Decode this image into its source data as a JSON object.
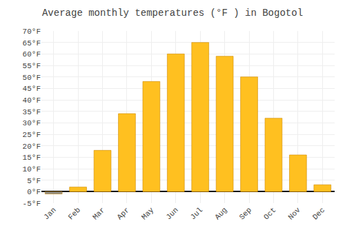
{
  "chart_data": {
    "type": "bar",
    "title": "Average monthly temperatures (°F ) in Bogotol",
    "categories": [
      "Jan",
      "Feb",
      "Mar",
      "Apr",
      "May",
      "Jun",
      "Jul",
      "Aug",
      "Sep",
      "Oct",
      "Nov",
      "Dec"
    ],
    "values": [
      -1,
      2,
      18,
      34,
      48,
      60,
      65,
      59,
      50,
      32,
      16,
      3
    ],
    "colors": [
      "#888888",
      "#FFC020",
      "#FFC020",
      "#FFC020",
      "#FFC020",
      "#FFC020",
      "#FFC020",
      "#FFC020",
      "#FFC020",
      "#FFC020",
      "#FFC020",
      "#FFC020"
    ],
    "ylim": [
      -5,
      70
    ],
    "yticks": [
      {
        "value": -5,
        "label": "-5°F"
      },
      {
        "value": 0,
        "label": "0°F"
      },
      {
        "value": 5,
        "label": "5°F"
      },
      {
        "value": 10,
        "label": "10°F"
      },
      {
        "value": 15,
        "label": "15°F"
      },
      {
        "value": 20,
        "label": "20°F"
      },
      {
        "value": 25,
        "label": "25°F"
      },
      {
        "value": 30,
        "label": "30°F"
      },
      {
        "value": 35,
        "label": "35°F"
      },
      {
        "value": 40,
        "label": "40°F"
      },
      {
        "value": 45,
        "label": "45°F"
      },
      {
        "value": 50,
        "label": "50°F"
      },
      {
        "value": 55,
        "label": "55°F"
      },
      {
        "value": 60,
        "label": "60°F"
      },
      {
        "value": 65,
        "label": "65°F"
      },
      {
        "value": 70,
        "label": "70°F"
      }
    ],
    "grid": true
  }
}
